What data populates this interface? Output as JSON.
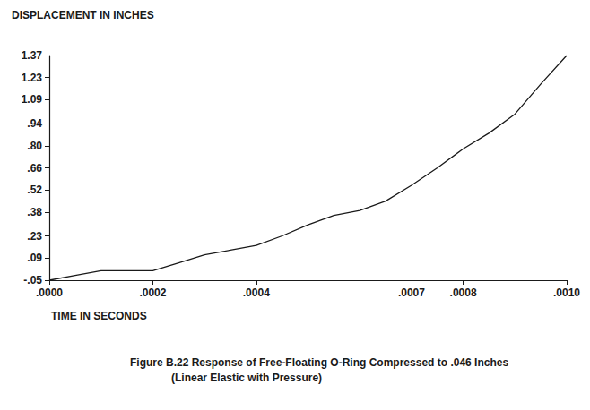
{
  "chart_data": {
    "type": "line",
    "title": "Figure B.22 Response of Free-Floating O-Ring Compressed to .046 Inches",
    "subtitle": "(Linear Elastic with Pressure)",
    "x_label": "TIME IN SECONDS",
    "y_label": "DISPLACEMENT IN INCHES",
    "x": [
      0,
      5e-05,
      0.0001,
      0.00015,
      0.0002,
      0.00025,
      0.0003,
      0.00035,
      0.0004,
      0.00045,
      0.0005,
      0.00055,
      0.0006,
      0.00065,
      0.0007,
      0.00075,
      0.0008,
      0.00085,
      0.0009,
      0.00095,
      0.001
    ],
    "values": [
      -0.05,
      -0.02,
      0.01,
      0.01,
      0.01,
      0.06,
      0.11,
      0.14,
      0.17,
      0.23,
      0.3,
      0.36,
      0.39,
      0.45,
      0.55,
      0.66,
      0.78,
      0.88,
      1.0,
      1.19,
      1.37
    ],
    "color": "#1a1a1a",
    "xlim": [
      0,
      0.001
    ],
    "xticks": [
      {
        "value": 0,
        "label": ".0000"
      },
      {
        "value": 0.0002,
        "label": ".0002"
      },
      {
        "value": 0.0004,
        "label": ".0004"
      },
      {
        "value": 0.0007,
        "label": ".0007"
      },
      {
        "value": 0.0008,
        "label": ".0008"
      },
      {
        "value": 0.001,
        "label": ".0010"
      }
    ],
    "ylim": [
      -0.05,
      1.37
    ],
    "yticks": [
      {
        "value": -0.05,
        "label": "-.05"
      },
      {
        "value": 0.09,
        "label": ".09"
      },
      {
        "value": 0.23,
        "label": ".23"
      },
      {
        "value": 0.38,
        "label": ".38"
      },
      {
        "value": 0.52,
        "label": ".52"
      },
      {
        "value": 0.66,
        "label": ".66"
      },
      {
        "value": 0.8,
        "label": ".80"
      },
      {
        "value": 0.94,
        "label": ".94"
      },
      {
        "value": 1.09,
        "label": "1.09"
      },
      {
        "value": 1.23,
        "label": "1.23"
      },
      {
        "value": 1.37,
        "label": "1.37"
      }
    ],
    "grid": false
  }
}
